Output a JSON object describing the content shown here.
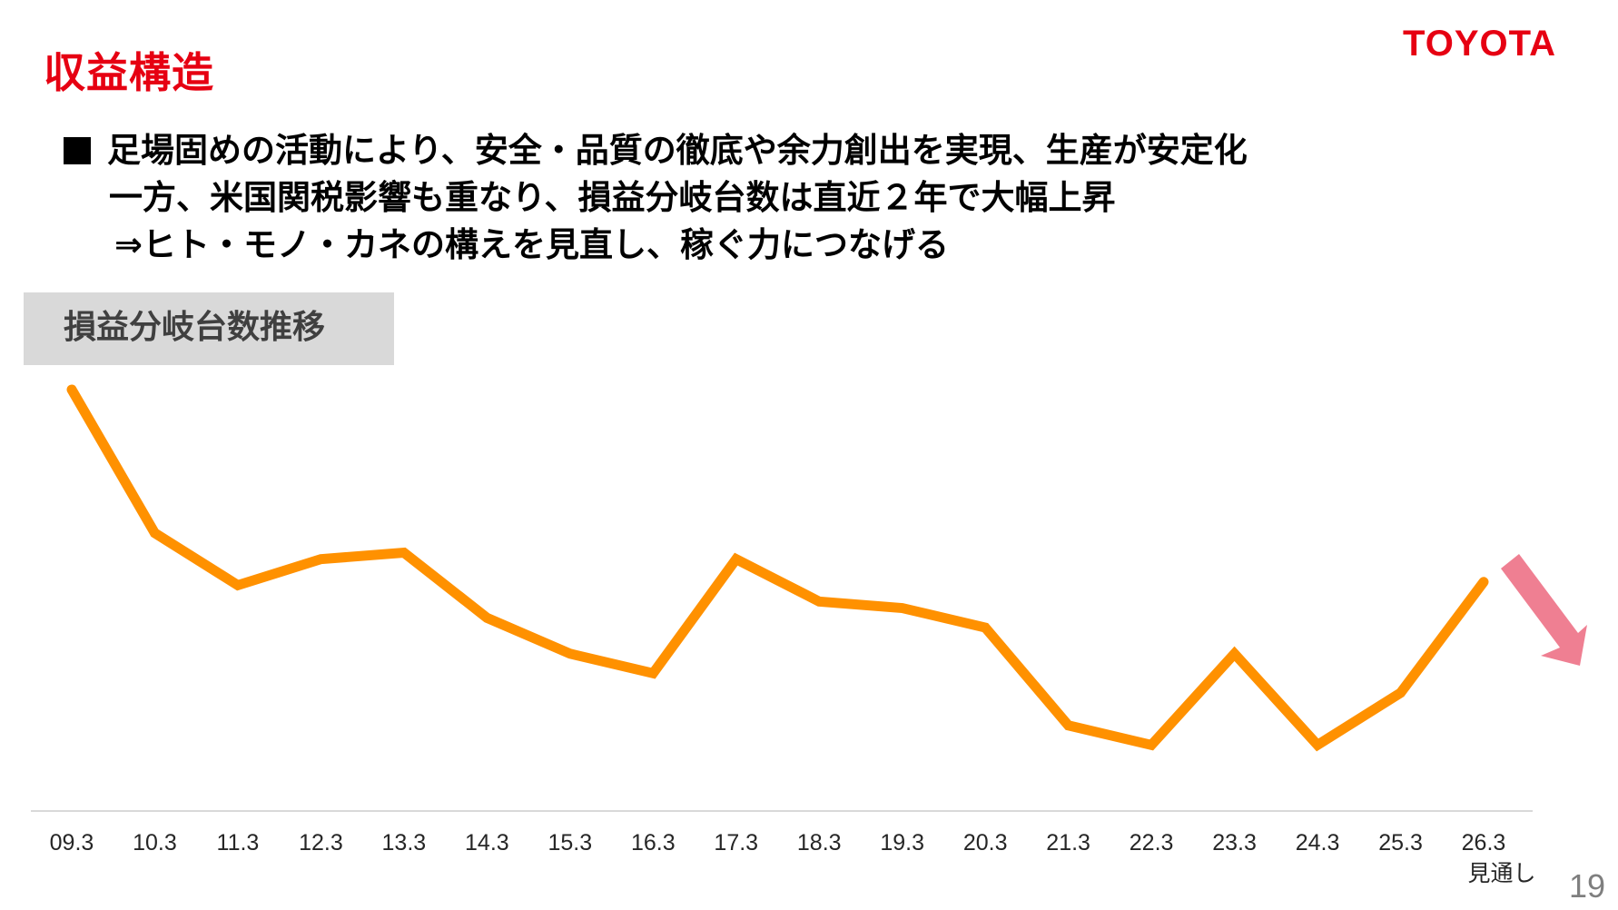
{
  "header": {
    "title": "収益構造",
    "brand": "TOYOTA",
    "title_color": "#e60012"
  },
  "bullets": {
    "lines": [
      "足場固めの活動により、安全・品質の徹底や余力創出を実現、生産が安定化",
      "一方、米国関税影響も重なり、損益分岐台数は直近２年で大幅上昇",
      "⇒ヒト・モノ・カネの構えを見直し、稼ぐ力につなげる"
    ],
    "marker": "square-bullet"
  },
  "section": {
    "label": "損益分岐台数推移"
  },
  "footer": {
    "page_number": "19"
  },
  "chart_data": {
    "type": "line",
    "title": "損益分岐台数推移",
    "xlabel": "",
    "ylabel": "",
    "categories": [
      "09.3",
      "10.3",
      "11.3",
      "12.3",
      "13.3",
      "14.3",
      "15.3",
      "16.3",
      "17.3",
      "18.3",
      "19.3",
      "20.3",
      "21.3",
      "22.3",
      "23.3",
      "24.3",
      "25.3",
      "26.3"
    ],
    "category_notes": {
      "26.3": "見通し"
    },
    "series": [
      {
        "name": "損益分岐台数",
        "color": "#ff9100",
        "relative_values": [
          100,
          56,
          40,
          48,
          50,
          30,
          19,
          13,
          48,
          35,
          33,
          27,
          -3,
          -9,
          19,
          -9,
          7,
          41
        ]
      }
    ],
    "y_axis_visible": false,
    "gridlines": false,
    "legend": "none",
    "annotations": [
      {
        "type": "arrow",
        "direction": "down-right",
        "color": "#ef7f92",
        "meaning": "expected decrease after 26.3"
      }
    ],
    "note": "Y axis has no tick labels; values are relative heights (09.3 = 100, index scale estimated from pixel positions)."
  }
}
